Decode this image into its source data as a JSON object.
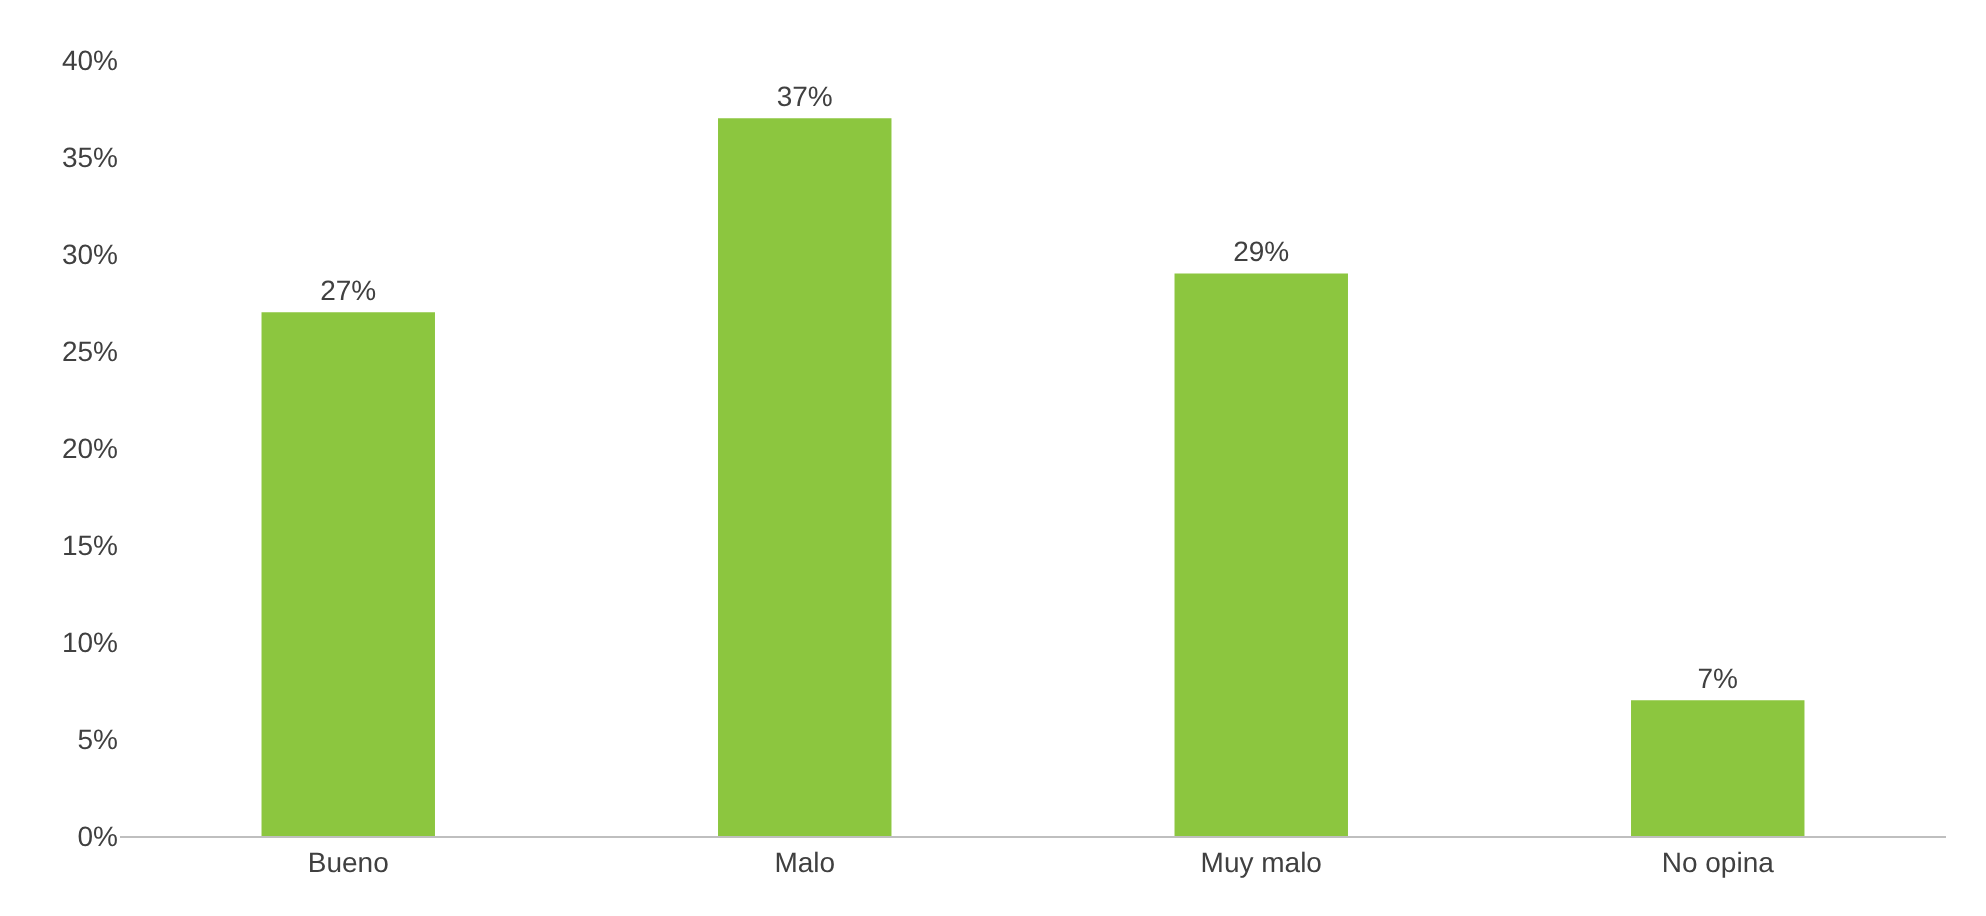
{
  "chart_data": {
    "type": "bar",
    "categories": [
      "Bueno",
      "Malo",
      "Muy malo",
      "No opina"
    ],
    "values": [
      27,
      37,
      29,
      7
    ],
    "value_labels": [
      "27%",
      "37%",
      "29%",
      "7%"
    ],
    "color": "#8cc63f",
    "ylim": [
      0,
      40
    ],
    "yticks": [
      {
        "value": 0,
        "label": "0%"
      },
      {
        "value": 5,
        "label": "5%"
      },
      {
        "value": 10,
        "label": "10%"
      },
      {
        "value": 15,
        "label": "15%"
      },
      {
        "value": 20,
        "label": "20%"
      },
      {
        "value": 25,
        "label": "25%"
      },
      {
        "value": 30,
        "label": "30%"
      },
      {
        "value": 35,
        "label": "35%"
      },
      {
        "value": 40,
        "label": "40%"
      }
    ]
  }
}
